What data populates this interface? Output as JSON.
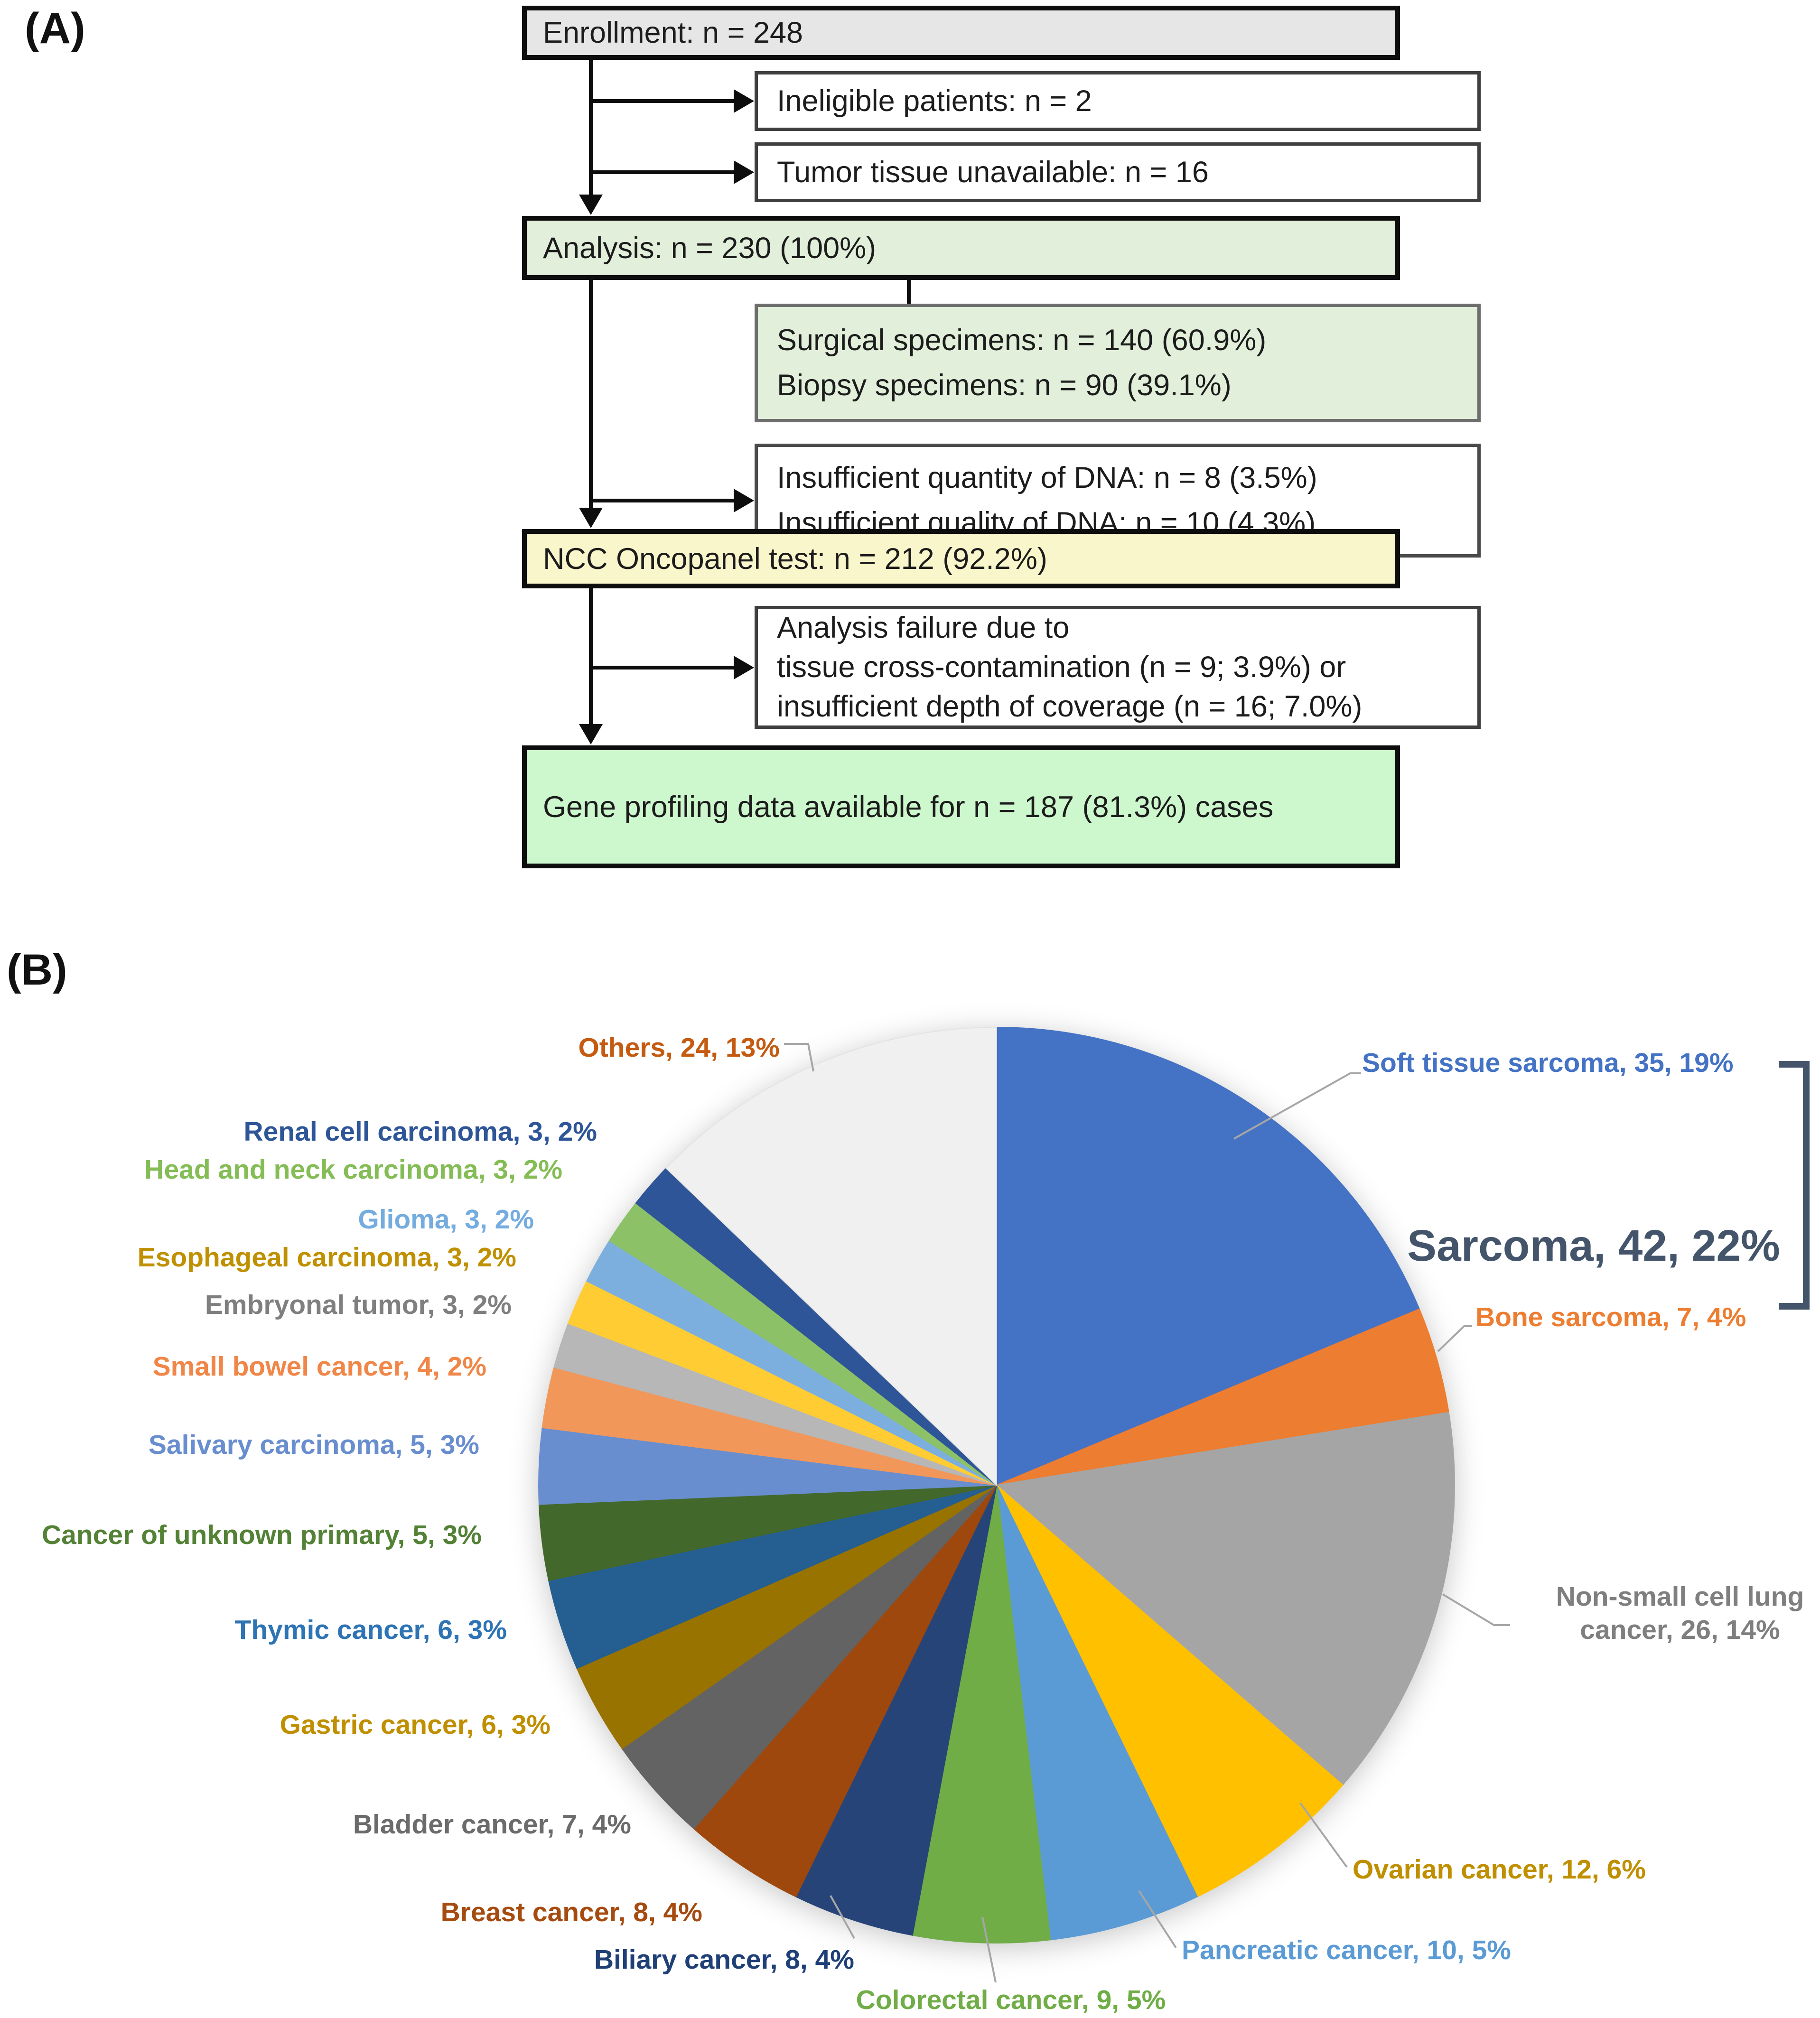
{
  "figure": {
    "panel_a_label": "(A)",
    "panel_b_label": "(B)"
  },
  "flowchart": {
    "boxes": [
      {
        "id": "enrollment",
        "text": "Enrollment: n  =  248",
        "fill": "#E7E6E6",
        "border": "#0d0d0d"
      },
      {
        "id": "ineligible",
        "text": "Ineligible patients: n = 2",
        "fill": "#FFFFFF",
        "border": "#3f3f3f"
      },
      {
        "id": "tumor-tissue",
        "text": "Tumor tissue unavailable: n = 16",
        "fill": "#FFFFFF",
        "border": "#3f3f3f"
      },
      {
        "id": "analysis",
        "text": "Analysis: n = 230 (100%)",
        "fill": "#E2EFDA",
        "border": "#0d0d0d"
      },
      {
        "id": "specimens",
        "lines": [
          "Surgical specimens: n = 140 (60.9%)",
          "Biopsy specimens: n = 90 (39.1%)"
        ],
        "fill": "#E2EFDA",
        "border": "#6d6d6d"
      },
      {
        "id": "dna",
        "lines": [
          "Insufficient quantity of DNA: n = 8 (3.5%)",
          "Insufficient quality of DNA: n = 10 (4.3%)"
        ],
        "fill": "#FFFFFF",
        "border": "#4a4a4a"
      },
      {
        "id": "oncopanel",
        "text": "NCC Oncopanel test: n = 212 (92.2%)",
        "fill": "#FAF6CB",
        "border": "#0d0d0d"
      },
      {
        "id": "failure",
        "lines": [
          "Analysis failure due to",
          "tissue cross-contamination (n = 9; 3.9%) or",
          "insufficient depth of coverage (n = 16; 7.0%)"
        ],
        "fill": "#FFFFFF",
        "border": "#3f3f3f"
      },
      {
        "id": "gene-profiling",
        "text": "Gene profiling data available for n = 187 (81.3%) cases",
        "fill": "#CDF7CD",
        "border": "#0d0d0d"
      }
    ]
  },
  "chart_data": {
    "type": "pie",
    "title": "",
    "total": 187,
    "start_angle_deg": 0,
    "direction": "clockwise",
    "legend_position": "none",
    "slices": [
      {
        "id": "soft-tissue-sarcoma",
        "name": "Soft tissue sarcoma",
        "value": 35,
        "pct": "19%",
        "label": "Soft tissue sarcoma, 35, 19%",
        "color": "#4472C4",
        "label_color": "#4472C4"
      },
      {
        "id": "bone-sarcoma",
        "name": "Bone sarcoma",
        "value": 7,
        "pct": "4%",
        "label": "Bone sarcoma, 7, 4%",
        "color": "#ED7D31",
        "label_color": "#ED7D31"
      },
      {
        "id": "nsclc",
        "name": "Non-small cell lung cancer",
        "value": 26,
        "pct": "14%",
        "label": "Non-small cell lung cancer, 26, 14%",
        "color": "#A5A5A5",
        "label_color": "#7F7F7F"
      },
      {
        "id": "ovarian",
        "name": "Ovarian cancer",
        "value": 12,
        "pct": "6%",
        "label": "Ovarian cancer, 12, 6%",
        "color": "#FFC000",
        "label_color": "#BF8F00"
      },
      {
        "id": "pancreatic",
        "name": "Pancreatic cancer",
        "value": 10,
        "pct": "5%",
        "label": "Pancreatic cancer, 10, 5%",
        "color": "#5B9BD5",
        "label_color": "#5B9BD5"
      },
      {
        "id": "colorectal",
        "name": "Colorectal cancer",
        "value": 9,
        "pct": "5%",
        "label": "Colorectal cancer, 9, 5%",
        "color": "#70AD47",
        "label_color": "#70AD47"
      },
      {
        "id": "biliary",
        "name": "Biliary cancer",
        "value": 8,
        "pct": "4%",
        "label": "Biliary cancer, 8, 4%",
        "color": "#264478",
        "label_color": "#1F4077"
      },
      {
        "id": "breast",
        "name": "Breast cancer",
        "value": 8,
        "pct": "4%",
        "label": "Breast cancer, 8, 4%",
        "color": "#9E480E",
        "label_color": "#A64B10"
      },
      {
        "id": "bladder",
        "name": "Bladder cancer",
        "value": 7,
        "pct": "4%",
        "label": "Bladder cancer, 7, 4%",
        "color": "#636363",
        "label_color": "#6B6B6B"
      },
      {
        "id": "gastric",
        "name": "Gastric cancer",
        "value": 6,
        "pct": "3%",
        "label": "Gastric cancer, 6, 3%",
        "color": "#997300",
        "label_color": "#BF8F00"
      },
      {
        "id": "thymic",
        "name": "Thymic cancer",
        "value": 6,
        "pct": "3%",
        "label": "Thymic cancer, 6, 3%",
        "color": "#255E91",
        "label_color": "#2E74B5"
      },
      {
        "id": "unknown-primary",
        "name": "Cancer of unknown primary",
        "value": 5,
        "pct": "3%",
        "label": "Cancer of unknown primary, 5, 3%",
        "color": "#43682B",
        "label_color": "#538135"
      },
      {
        "id": "salivary",
        "name": "Salivary carcinoma",
        "value": 5,
        "pct": "3%",
        "label": "Salivary carcinoma, 5, 3%",
        "color": "#698ED0",
        "label_color": "#698ED0"
      },
      {
        "id": "small-bowel",
        "name": "Small bowel cancer",
        "value": 4,
        "pct": "2%",
        "label": "Small bowel cancer, 4, 2%",
        "color": "#F1975A",
        "label_color": "#F08647"
      },
      {
        "id": "embryonal",
        "name": "Embryonal tumor",
        "value": 3,
        "pct": "2%",
        "label": "Embryonal tumor, 3, 2%",
        "color": "#B7B7B7",
        "label_color": "#7F7F7F"
      },
      {
        "id": "esophageal",
        "name": "Esophageal carcinoma",
        "value": 3,
        "pct": "2%",
        "label": "Esophageal carcinoma, 3, 2%",
        "color": "#FFCD33",
        "label_color": "#BF9000"
      },
      {
        "id": "glioma",
        "name": "Glioma",
        "value": 3,
        "pct": "2%",
        "label": "Glioma, 3, 2%",
        "color": "#7CAFDD",
        "label_color": "#74ACDF"
      },
      {
        "id": "head-neck",
        "name": "Head and neck carcinoma",
        "value": 3,
        "pct": "2%",
        "label": "Head and neck carcinoma, 3, 2%",
        "color": "#8CC168",
        "label_color": "#84BC55"
      },
      {
        "id": "renal",
        "name": "Renal cell carcinoma",
        "value": 3,
        "pct": "2%",
        "label": "Renal cell carcinoma, 3, 2%",
        "color": "#2E5597",
        "label_color": "#2E5597"
      },
      {
        "id": "others",
        "name": "Others",
        "value": 24,
        "pct": "13%",
        "label": "Others, 24, 13%",
        "color": "#F0F0F0",
        "label_color": "#C55A11"
      }
    ],
    "annotation": {
      "text": "Sarcoma, 42, 22%",
      "value": 42,
      "pct": "22%",
      "color": "#44546A"
    }
  }
}
